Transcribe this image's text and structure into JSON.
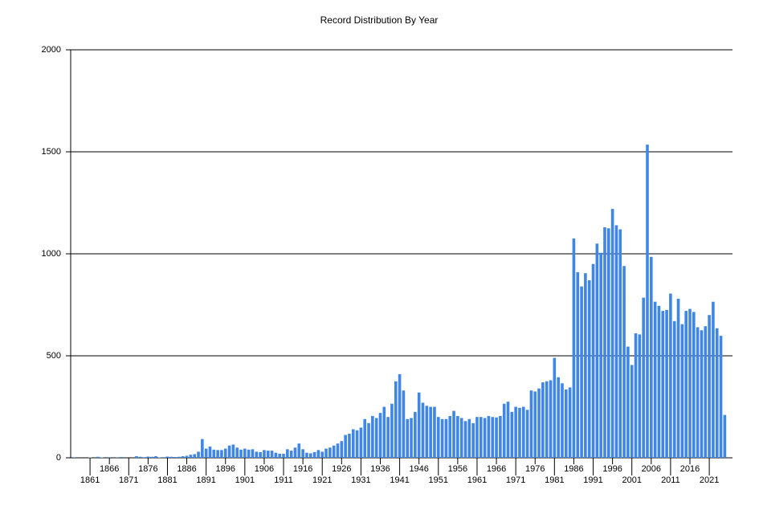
{
  "chart_data": {
    "type": "bar",
    "title": "Record Distribution By Year",
    "x": [
      1857,
      1858,
      1859,
      1860,
      1861,
      1862,
      1863,
      1864,
      1865,
      1866,
      1867,
      1868,
      1869,
      1870,
      1871,
      1872,
      1873,
      1874,
      1875,
      1876,
      1877,
      1878,
      1879,
      1880,
      1881,
      1882,
      1883,
      1884,
      1885,
      1886,
      1887,
      1888,
      1889,
      1890,
      1891,
      1892,
      1893,
      1894,
      1895,
      1896,
      1897,
      1898,
      1899,
      1900,
      1901,
      1902,
      1903,
      1904,
      1905,
      1906,
      1907,
      1908,
      1909,
      1910,
      1911,
      1912,
      1913,
      1914,
      1915,
      1916,
      1917,
      1918,
      1919,
      1920,
      1921,
      1922,
      1923,
      1924,
      1925,
      1926,
      1927,
      1928,
      1929,
      1930,
      1931,
      1932,
      1933,
      1934,
      1935,
      1936,
      1937,
      1938,
      1939,
      1940,
      1941,
      1942,
      1943,
      1944,
      1945,
      1946,
      1947,
      1948,
      1949,
      1950,
      1951,
      1952,
      1953,
      1954,
      1955,
      1956,
      1957,
      1958,
      1959,
      1960,
      1961,
      1962,
      1963,
      1964,
      1965,
      1966,
      1967,
      1968,
      1969,
      1970,
      1971,
      1972,
      1973,
      1974,
      1975,
      1976,
      1977,
      1978,
      1979,
      1980,
      1981,
      1982,
      1983,
      1984,
      1985,
      1986,
      1987,
      1988,
      1989,
      1990,
      1991,
      1992,
      1993,
      1994,
      1995,
      1996,
      1997,
      1998,
      1999,
      2000,
      2001,
      2002,
      2003,
      2004,
      2005,
      2006,
      2007,
      2008,
      2009,
      2010,
      2011,
      2012,
      2013,
      2014,
      2015,
      2016,
      2017,
      2018,
      2019,
      2020,
      2021,
      2022,
      2023,
      2024,
      2025
    ],
    "values": [
      3,
      0,
      0,
      0,
      2,
      0,
      5,
      2,
      0,
      3,
      0,
      1,
      4,
      0,
      0,
      0,
      8,
      5,
      3,
      6,
      5,
      8,
      2,
      3,
      6,
      5,
      4,
      5,
      8,
      10,
      15,
      18,
      30,
      92,
      45,
      55,
      40,
      38,
      38,
      45,
      60,
      65,
      50,
      40,
      45,
      40,
      42,
      30,
      28,
      38,
      35,
      35,
      25,
      20,
      20,
      42,
      35,
      50,
      70,
      42,
      25,
      22,
      28,
      38,
      30,
      45,
      50,
      60,
      70,
      82,
      112,
      118,
      140,
      135,
      148,
      190,
      170,
      205,
      195,
      220,
      250,
      200,
      265,
      375,
      410,
      330,
      190,
      195,
      225,
      320,
      270,
      255,
      250,
      250,
      200,
      190,
      190,
      205,
      230,
      205,
      195,
      180,
      190,
      170,
      200,
      200,
      195,
      205,
      200,
      198,
      205,
      265,
      275,
      225,
      250,
      245,
      250,
      235,
      330,
      325,
      340,
      370,
      375,
      380,
      490,
      395,
      365,
      335,
      345,
      1075,
      910,
      840,
      905,
      870,
      950,
      1050,
      1005,
      1130,
      1125,
      1220,
      1140,
      1120,
      940,
      545,
      455,
      610,
      605,
      785,
      1535,
      985,
      765,
      745,
      720,
      725,
      805,
      670,
      780,
      655,
      720,
      730,
      715,
      640,
      625,
      645,
      700,
      765,
      635,
      598,
      210
    ],
    "color": "#3f86e6",
    "xlim": [
      1856,
      2027
    ],
    "xticks": [
      1861,
      1866,
      1871,
      1876,
      1881,
      1886,
      1891,
      1896,
      1901,
      1906,
      1911,
      1916,
      1921,
      1926,
      1931,
      1936,
      1941,
      1946,
      1951,
      1956,
      1961,
      1966,
      1971,
      1976,
      1981,
      1986,
      1991,
      1996,
      2001,
      2006,
      2011,
      2016,
      2021
    ],
    "ylim": [
      0,
      2000
    ],
    "yticks": [
      0,
      500,
      1000,
      1500,
      2000
    ],
    "grid": true
  }
}
